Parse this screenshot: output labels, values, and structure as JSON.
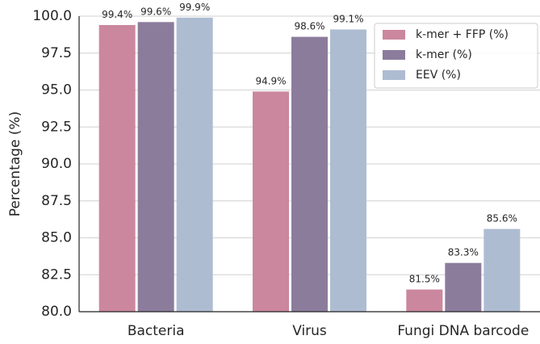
{
  "chart_data": {
    "type": "bar",
    "title": "",
    "xlabel": "",
    "ylabel": "Percentage (%)",
    "categories": [
      "Bacteria",
      "Virus",
      "Fungi DNA barcode"
    ],
    "series": [
      {
        "name": "k-mer + FFP (%)",
        "color": "#cb879d",
        "values": [
          99.4,
          94.9,
          81.5
        ],
        "labels": [
          "99.4%",
          "94.9%",
          "81.5%"
        ]
      },
      {
        "name": "k-mer (%)",
        "color": "#8c7c9c",
        "values": [
          99.6,
          98.6,
          83.3
        ],
        "labels": [
          "99.6%",
          "98.6%",
          "83.3%"
        ]
      },
      {
        "name": "EEV (%)",
        "color": "#aebcd2",
        "values": [
          99.9,
          99.1,
          85.6
        ],
        "labels": [
          "99.9%",
          "99.1%",
          "85.6%"
        ]
      }
    ],
    "ylim": [
      80,
      100
    ],
    "yticks": [
      "80.0",
      "82.5",
      "85.0",
      "87.5",
      "90.0",
      "92.5",
      "95.0",
      "97.5",
      "100.0"
    ],
    "grid": true,
    "legend_position": "top-right"
  }
}
